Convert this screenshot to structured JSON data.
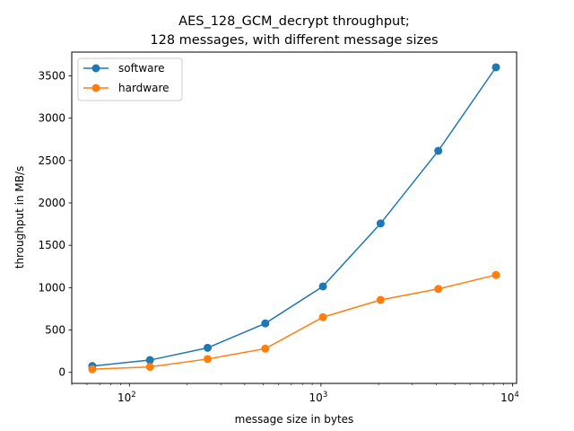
{
  "chart_data": {
    "type": "line",
    "title_line1": "AES_128_GCM_decrypt throughput;",
    "title_line2": "128 messages, with different message sizes",
    "xlabel": "message size in bytes",
    "ylabel": "throughput in MB/s",
    "x_scale": "log",
    "xlim": [
      50,
      10500
    ],
    "ylim": [
      -130,
      3780
    ],
    "x_ticks": [
      100,
      1000,
      10000
    ],
    "x_tick_labels": [
      {
        "base": "10",
        "exp": "2"
      },
      {
        "base": "10",
        "exp": "3"
      },
      {
        "base": "10",
        "exp": "4"
      }
    ],
    "y_ticks": [
      0,
      500,
      1000,
      1500,
      2000,
      2500,
      3000,
      3500
    ],
    "y_tick_labels": [
      "0",
      "500",
      "1000",
      "1500",
      "2000",
      "2500",
      "3000",
      "3500"
    ],
    "grid": false,
    "legend_position": "top-left",
    "x": [
      64,
      128,
      256,
      512,
      1024,
      2048,
      4096,
      8192
    ],
    "series": [
      {
        "name": "software",
        "color": "#1f77b4",
        "values": [
          75,
          145,
          290,
          578,
          1015,
          1758,
          2615,
          3600
        ]
      },
      {
        "name": "hardware",
        "color": "#ff7f0e",
        "values": [
          38,
          65,
          158,
          280,
          652,
          855,
          985,
          1150
        ]
      }
    ]
  }
}
